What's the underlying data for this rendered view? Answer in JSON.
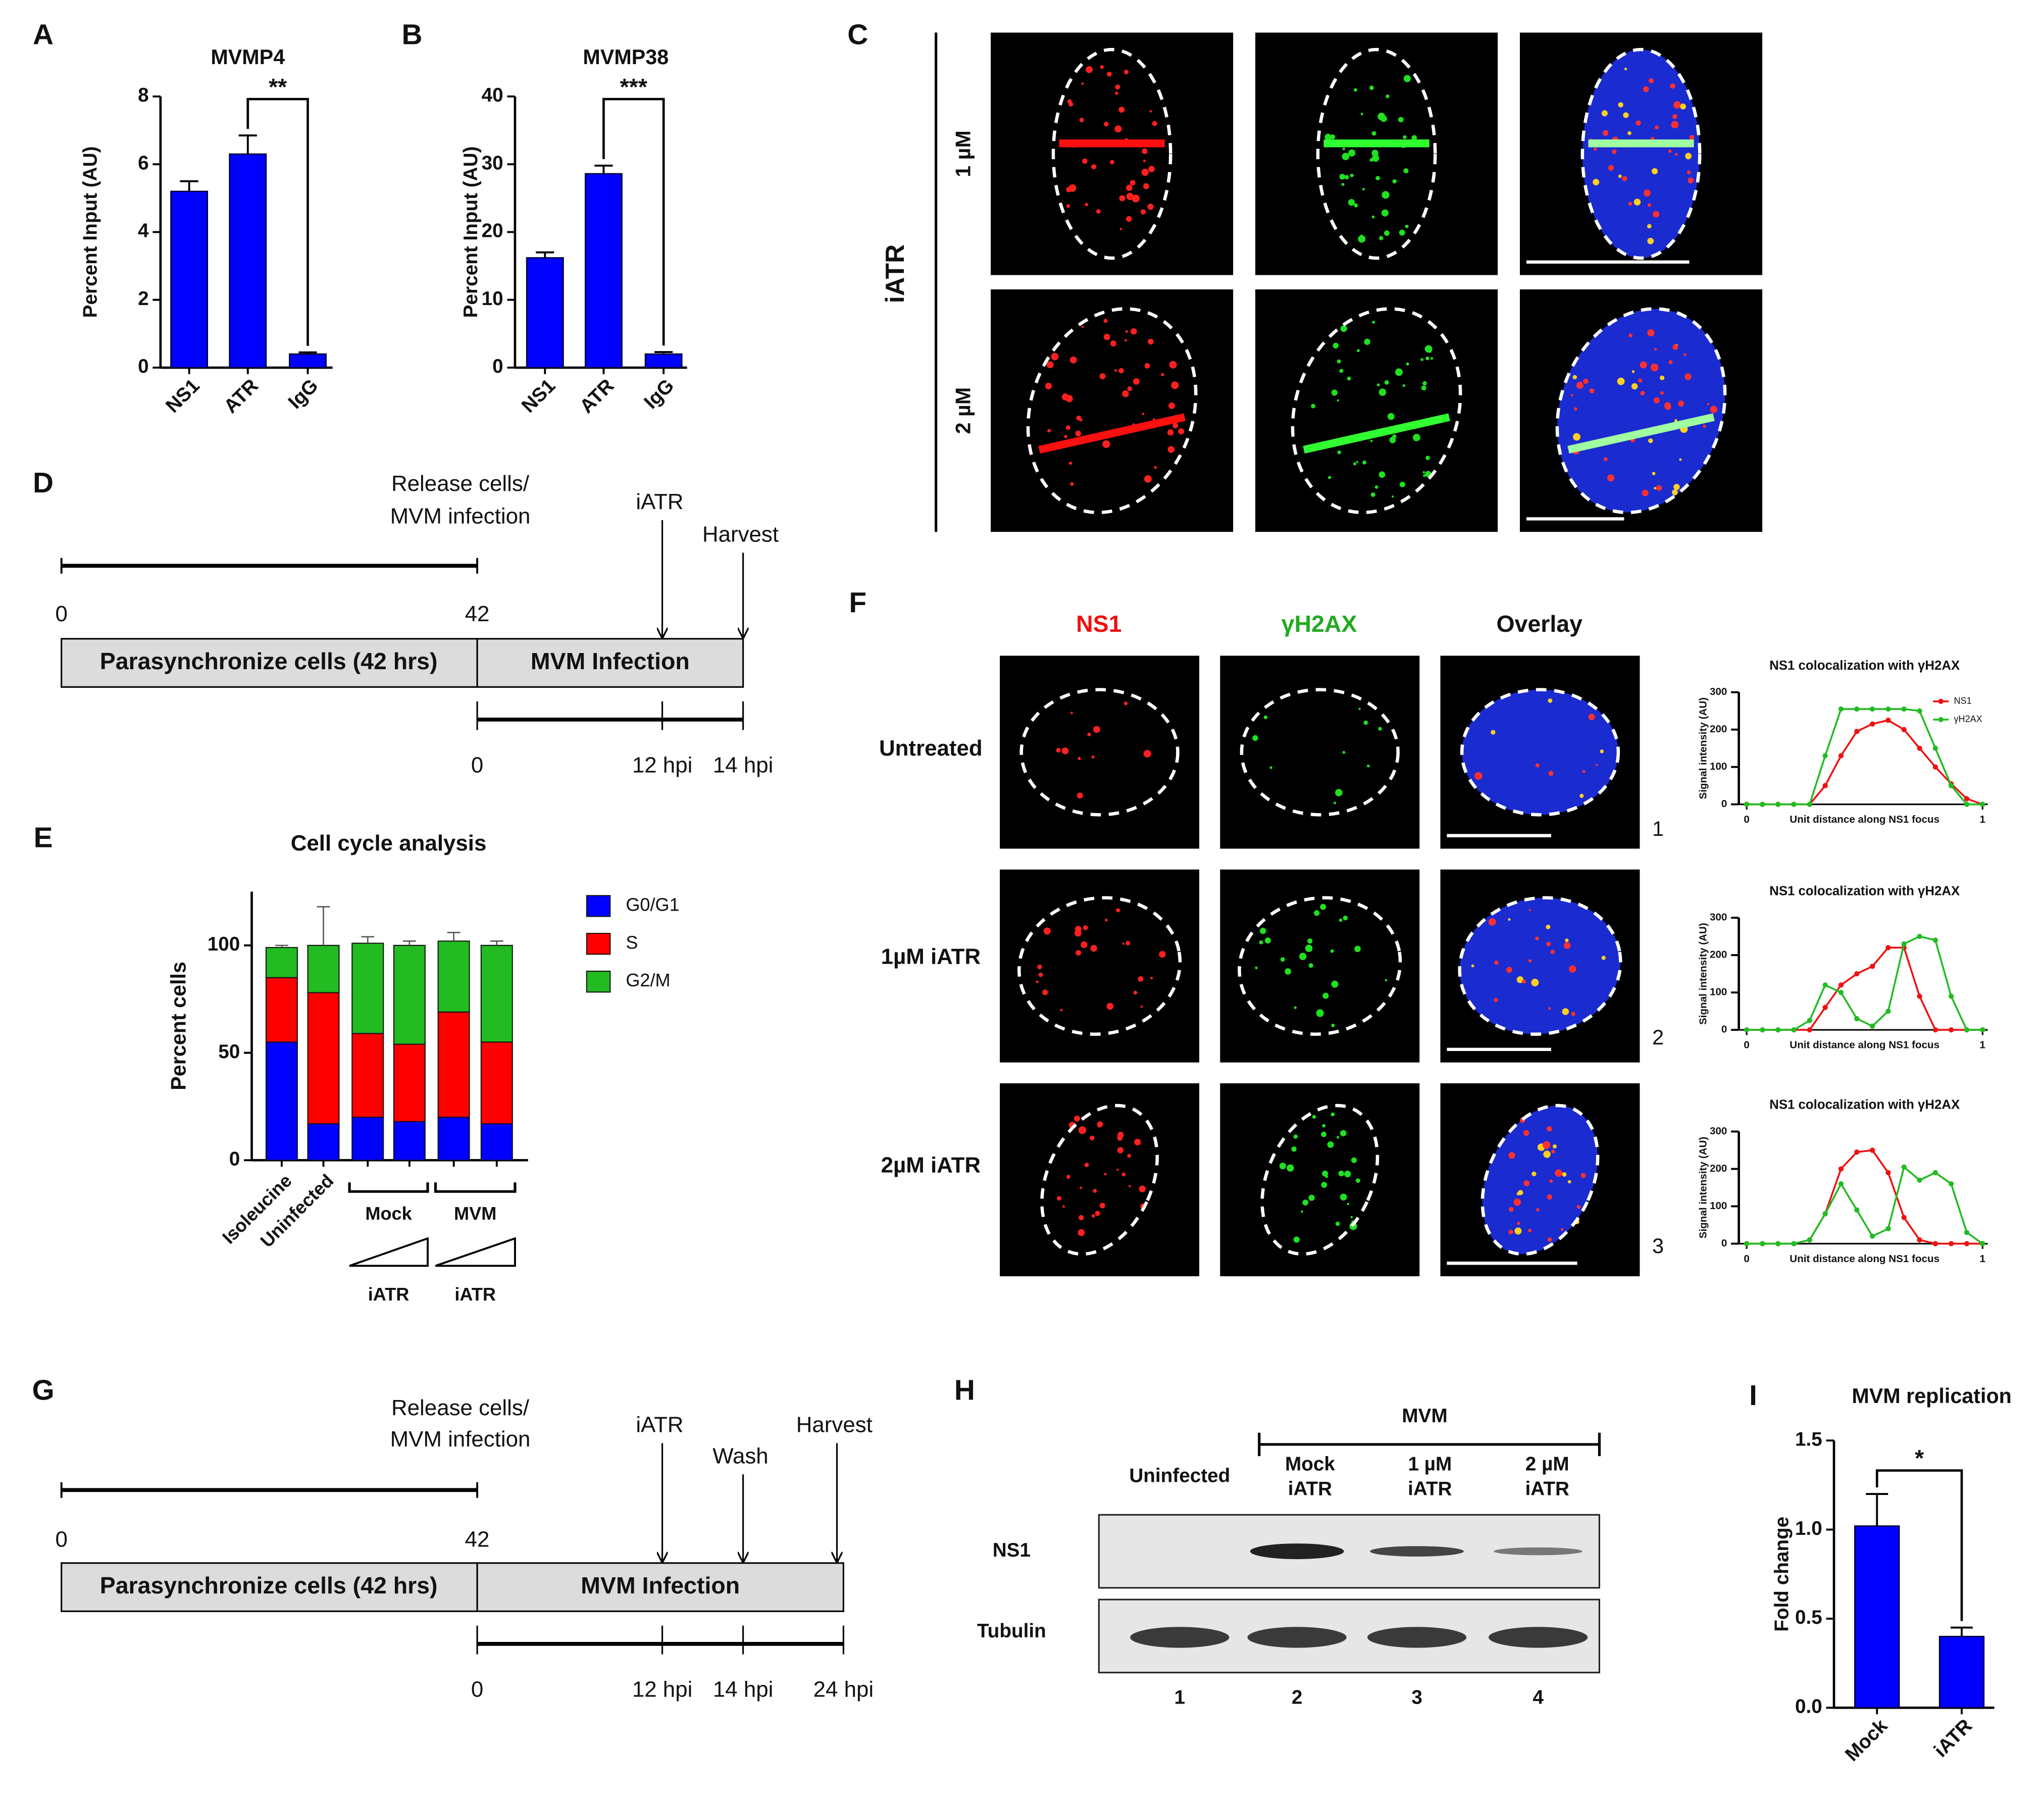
{
  "panel_labels": [
    "A",
    "B",
    "C",
    "D",
    "E",
    "F",
    "G",
    "H",
    "I"
  ],
  "chart_data": [
    {
      "type": "bar",
      "title": "MVMP4",
      "y_label": "Percent Input (AU)",
      "categories": [
        "NS1",
        "ATR",
        "IgG"
      ],
      "values": [
        5.2,
        6.3,
        0.4
      ],
      "errors": [
        0.3,
        0.55,
        0.05
      ],
      "color": "#0000ff",
      "ylim": [
        0,
        8
      ],
      "yticks": [
        0,
        2,
        4,
        6,
        8
      ],
      "annotation": "**"
    },
    {
      "type": "bar",
      "title": "MVMP38",
      "y_label": "Percent Input (AU)",
      "categories": [
        "NS1",
        "ATR",
        "IgG"
      ],
      "values": [
        16.2,
        28.6,
        2.0
      ],
      "errors": [
        0.8,
        1.2,
        0.3
      ],
      "color": "#0000ff",
      "ylim": [
        0,
        40
      ],
      "yticks": [
        0,
        10,
        20,
        30,
        40
      ],
      "annotation": "***"
    },
    {
      "type": "stacked_bar",
      "title": "Cell cycle analysis",
      "y_label": "Percent cells",
      "categories": [
        "Isoleucine",
        "Uninfected",
        null,
        null,
        null,
        null
      ],
      "groups": [
        {
          "label": "Mock",
          "treatment": "iATR"
        },
        {
          "label": "MVM",
          "treatment": "iATR"
        }
      ],
      "series": [
        {
          "name": "G0/G1",
          "color": "#0000ff",
          "values": [
            55,
            17,
            20,
            18,
            20,
            17
          ]
        },
        {
          "name": "S",
          "color": "#ff0000",
          "values": [
            30,
            61,
            39,
            36,
            49,
            38
          ]
        },
        {
          "name": "G2/M",
          "color": "#22bb22",
          "values": [
            14,
            22,
            42,
            46,
            33,
            45
          ],
          "errors": [
            1,
            18,
            3,
            2,
            4,
            2
          ]
        }
      ],
      "ylim": [
        0,
        125
      ],
      "yticks": [
        0,
        50,
        100
      ]
    },
    {
      "type": "line",
      "title": "NS1 colocalization with γH2AX",
      "y_label": "Signal intensity (AU)",
      "x_label": "Unit distance along NS1 focus",
      "legend": true,
      "x": [
        0,
        0.067,
        0.133,
        0.2,
        0.267,
        0.333,
        0.4,
        0.467,
        0.533,
        0.6,
        0.667,
        0.733,
        0.8,
        0.867,
        0.933,
        1
      ],
      "series": [
        {
          "name": "NS1",
          "color": "#ee1111",
          "values": [
            0,
            0,
            0,
            0,
            0,
            50,
            130,
            195,
            215,
            225,
            200,
            150,
            100,
            55,
            15,
            0
          ]
        },
        {
          "name": "γH2AX",
          "color": "#22bb22",
          "values": [
            0,
            0,
            0,
            0,
            0,
            130,
            255,
            255,
            255,
            255,
            255,
            250,
            150,
            50,
            0,
            0
          ]
        }
      ],
      "xlim": [
        0,
        1
      ],
      "xticks": [
        0,
        1
      ],
      "ylim": [
        0,
        300
      ],
      "yticks": [
        0,
        100,
        200,
        300
      ]
    },
    {
      "type": "line",
      "title": "NS1 colocalization with γH2AX",
      "y_label": "Signal intensity (AU)",
      "x_label": "Unit distance along NS1 focus",
      "legend": false,
      "x": [
        0,
        0.067,
        0.133,
        0.2,
        0.267,
        0.333,
        0.4,
        0.467,
        0.533,
        0.6,
        0.667,
        0.733,
        0.8,
        0.867,
        0.933,
        1
      ],
      "series": [
        {
          "name": "NS1",
          "color": "#ee1111",
          "values": [
            0,
            0,
            0,
            0,
            0,
            60,
            120,
            150,
            170,
            220,
            220,
            90,
            0,
            0,
            0,
            0
          ]
        },
        {
          "name": "γH2AX",
          "color": "#22bb22",
          "values": [
            0,
            0,
            0,
            0,
            25,
            120,
            100,
            30,
            10,
            50,
            230,
            250,
            240,
            90,
            0,
            0
          ]
        }
      ],
      "xlim": [
        0,
        1
      ],
      "xticks": [
        0,
        1
      ],
      "ylim": [
        0,
        300
      ],
      "yticks": [
        0,
        100,
        200,
        300
      ]
    },
    {
      "type": "line",
      "title": "NS1 colocalization with γH2AX",
      "y_label": "Signal intensity (AU)",
      "x_label": "Unit distance along NS1 focus",
      "legend": false,
      "x": [
        0,
        0.067,
        0.133,
        0.2,
        0.267,
        0.333,
        0.4,
        0.467,
        0.533,
        0.6,
        0.667,
        0.733,
        0.8,
        0.867,
        0.933,
        1
      ],
      "series": [
        {
          "name": "NS1",
          "color": "#ee1111",
          "values": [
            0,
            0,
            0,
            0,
            10,
            80,
            200,
            245,
            250,
            190,
            70,
            10,
            0,
            0,
            0,
            0
          ]
        },
        {
          "name": "γH2AX",
          "color": "#22bb22",
          "values": [
            0,
            0,
            0,
            0,
            10,
            80,
            160,
            90,
            20,
            40,
            205,
            170,
            190,
            160,
            30,
            0
          ]
        }
      ],
      "xlim": [
        0,
        1
      ],
      "xticks": [
        0,
        1
      ],
      "ylim": [
        0,
        300
      ],
      "yticks": [
        0,
        100,
        200,
        300
      ]
    },
    {
      "type": "bar",
      "title": "MVM replication",
      "y_label": "Fold change",
      "categories": [
        "Mock",
        "iATR"
      ],
      "values": [
        1.02,
        0.4
      ],
      "errors": [
        0.18,
        0.05
      ],
      "color": "#0000ff",
      "ylim": [
        0,
        1.5
      ],
      "yticks": [
        {
          "value": 0,
          "label": "0.0"
        },
        {
          "value": 0.5,
          "label": "0.5"
        },
        {
          "value": 1,
          "label": "1.0"
        },
        {
          "value": 1.5,
          "label": "1.5"
        }
      ],
      "annotation": "*"
    }
  ],
  "panel_c": {
    "row_group": "iATR",
    "rows": [
      "1 µM",
      "2 µM"
    ]
  },
  "panel_f": {
    "columns": [
      "NS1",
      "γH2AX",
      "Overlay"
    ],
    "rows": [
      "Untreated",
      "1µM iATR",
      "2µM iATR"
    ],
    "row_numbers": [
      "1",
      "2",
      "3"
    ]
  },
  "timelines": [
    {
      "release": [
        "Release cells/",
        "MVM infection"
      ],
      "top_ticks": [
        "0",
        "42"
      ],
      "boxes": [
        "Parasynchronize cells (42 hrs)",
        "MVM Infection"
      ],
      "bottom_ticks": [
        "0",
        "12 hpi",
        "14 hpi"
      ],
      "events": [
        "iATR",
        "Harvest"
      ]
    },
    {
      "release": [
        "Release cells/",
        "MVM infection"
      ],
      "top_ticks": [
        "0",
        "42"
      ],
      "boxes": [
        "Parasynchronize cells (42 hrs)",
        "MVM Infection"
      ],
      "bottom_ticks": [
        "0",
        "12 hpi",
        "14 hpi",
        "24 hpi"
      ],
      "events": [
        "iATR",
        "Wash",
        "Harvest"
      ]
    }
  ],
  "panel_h": {
    "group": "MVM",
    "lanes": [
      [
        "Uninfected"
      ],
      [
        "Mock",
        "iATR"
      ],
      [
        "1 µM",
        "iATR"
      ],
      [
        "2 µM",
        "iATR"
      ]
    ],
    "blots": [
      "NS1",
      "Tubulin"
    ],
    "lane_numbers": [
      "1",
      "2",
      "3",
      "4"
    ]
  }
}
